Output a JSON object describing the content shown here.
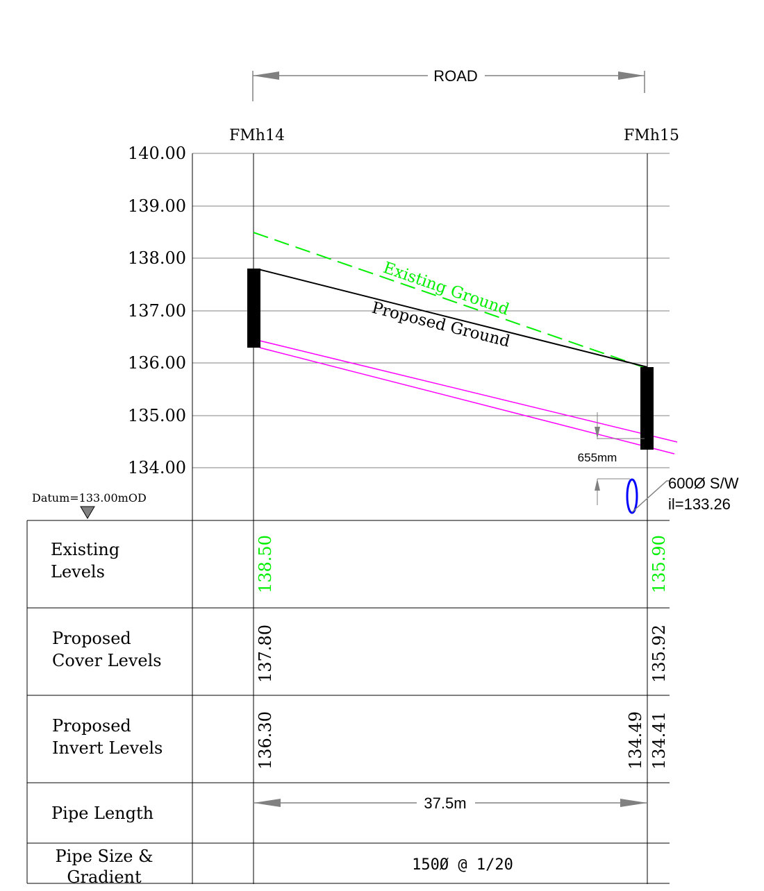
{
  "road_label": "ROAD",
  "manholes": [
    "FMh14",
    "FMh15"
  ],
  "y_axis": {
    "ticks": [
      "140.00",
      "139.00",
      "138.00",
      "137.00",
      "136.00",
      "135.00",
      "134.00"
    ],
    "datum": "Datum=133.00mOD"
  },
  "profile_labels": {
    "existing_ground": "Existing Ground",
    "proposed_ground": "Proposed Ground",
    "clearance": "655mm",
    "crossing_pipe_size": "600Ø S/W",
    "crossing_pipe_invert": "il=133.26"
  },
  "colors": {
    "existing": "#00ee00",
    "pipe": "#ff00ff",
    "crossing_pipe": "#0000ff",
    "ink": "#000000"
  },
  "table": {
    "existing_levels": {
      "label_line1": "Existing",
      "label_line2": "Levels",
      "fmh14": "138.50",
      "fmh15": "135.90"
    },
    "cover_levels": {
      "label_line1": "Proposed",
      "label_line2": "Cover Levels",
      "fmh14": "137.80",
      "fmh15": "135.92"
    },
    "invert_levels": {
      "label_line1": "Proposed",
      "label_line2": "Invert Levels",
      "fmh14": "136.30",
      "fmh15_in": "134.49",
      "fmh15_out": "134.41"
    },
    "pipe_length": {
      "label": "Pipe Length",
      "value": "37.5m"
    },
    "pipe_size": {
      "label_line1": "Pipe Size &",
      "label_line2": "Gradient",
      "value": "150Ø @ 1/20"
    }
  }
}
